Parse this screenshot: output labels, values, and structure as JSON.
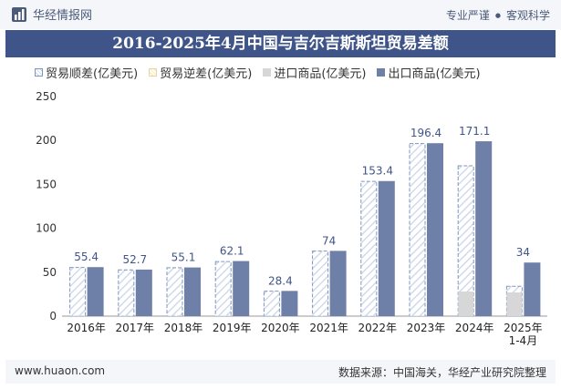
{
  "header": {
    "brand": "华经情报网",
    "brand_icon": "chart-logo-icon",
    "slogan_left": "专业严谨",
    "slogan_sep": "●",
    "slogan_right": "客观科学"
  },
  "footer": {
    "url": "www.huaon.com",
    "source": "数据来源：中国海关，华经产业研究院整理"
  },
  "colors": {
    "title_bg": "#3f5488",
    "export": "#6f80a8",
    "import": "#d7d7d7",
    "surplus_stroke": "#7f96bf",
    "deficit_stroke": "#e8d59a"
  },
  "chart_data": {
    "type": "bar",
    "title": "2016-2025年4月中国与吉尔吉斯斯坦贸易差额",
    "categories": [
      "2016年",
      "2017年",
      "2018年",
      "2019年",
      "2020年",
      "2021年",
      "2022年",
      "2023年",
      "2024年",
      "2025年\n1-4月"
    ],
    "series": [
      {
        "name": "贸易顺差(亿美元)",
        "values": [
          55.4,
          52.7,
          55.1,
          62.1,
          28.4,
          74,
          153.4,
          196.4,
          171.1,
          34
        ]
      },
      {
        "name": "贸易逆差(亿美元)",
        "values": [
          0,
          0,
          0,
          0,
          0,
          0,
          0,
          0,
          0,
          0
        ]
      },
      {
        "name": "进口商品(亿美元)",
        "values": [
          0.4,
          0.3,
          0.3,
          0.6,
          0.3,
          0.3,
          0.4,
          0.5,
          28,
          27
        ]
      },
      {
        "name": "出口商品(亿美元)",
        "values": [
          55.8,
          53.0,
          55.4,
          62.7,
          28.7,
          74.3,
          153.8,
          196.9,
          199.1,
          61
        ]
      }
    ],
    "data_labels": [
      "55.4",
      "52.7",
      "55.1",
      "62.1",
      "28.4",
      "74",
      "153.4",
      "196.4",
      "171.1",
      "34"
    ],
    "yticks": [
      "0",
      "50",
      "100",
      "150",
      "200",
      "250"
    ],
    "ylim": [
      0,
      250
    ],
    "legend_position": "top-left",
    "grid": false
  }
}
